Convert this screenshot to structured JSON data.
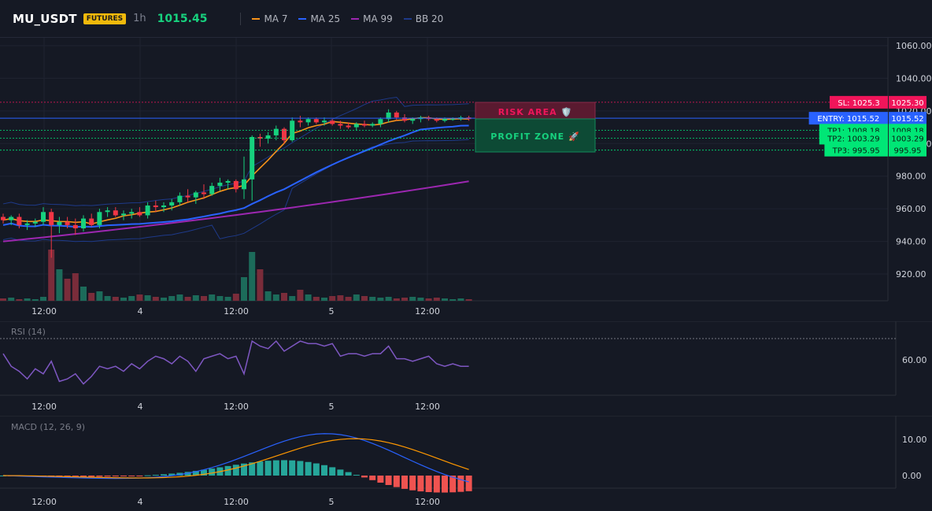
{
  "header": {
    "symbol": "MU_USDT",
    "badge": "FUTURES",
    "timeframe": "1h",
    "last_price": "1015.45",
    "indicators": [
      {
        "label": "MA 7",
        "color": "#f7931a"
      },
      {
        "label": "MA 25",
        "color": "#2962ff"
      },
      {
        "label": "MA 99",
        "color": "#9c27b0"
      },
      {
        "label": "BB 20",
        "color": "#1e3a8a"
      }
    ]
  },
  "colors": {
    "background": "#151924",
    "up": "#17d17e",
    "down": "#f23645",
    "stop_loss": "#f0155a",
    "entry": "#2962ff",
    "take_profit": "#00e676"
  },
  "main_axis": {
    "ticks": [
      "1060.00",
      "1040.00",
      "1020.00",
      "1000.00",
      "980.00",
      "960.00",
      "940.00",
      "920.00"
    ],
    "tick_values": [
      1060,
      1040,
      1020,
      1000,
      980,
      960,
      940,
      920
    ]
  },
  "time_axis": {
    "labels": [
      "12:00",
      "4",
      "12:00",
      "5",
      "12:00"
    ]
  },
  "levels": {
    "stop_loss": {
      "label": "SL: 1025.3",
      "value_text": "1025.30",
      "value": 1025.3
    },
    "entry": {
      "label": "ENTRY: 1015.52",
      "value_text": "1015.52",
      "value": 1015.52
    },
    "tp1": {
      "label": "TP1: 1008.18",
      "value_text": "1008.18",
      "value": 1008.18
    },
    "tp2": {
      "label": "TP2: 1003.29",
      "value_text": "1003.29",
      "value": 1003.29
    },
    "tp3": {
      "label": "TP3: 995.95",
      "value_text": "995.95",
      "value": 995.95
    }
  },
  "zones": {
    "risk_label": "RISK AREA 🛡️",
    "profit_label": "PROFIT ZONE 🚀"
  },
  "rsi": {
    "label": "RSI (14)",
    "tick": "60.00",
    "values": [
      58,
      53,
      51,
      48,
      52,
      50,
      55,
      47,
      48,
      50,
      46,
      49,
      53,
      52,
      53,
      51,
      54,
      52,
      55,
      57,
      56,
      54,
      57,
      55,
      51,
      56,
      57,
      58,
      56,
      57,
      50,
      63,
      61,
      60,
      63,
      59,
      61,
      63,
      62,
      62,
      61,
      62,
      57,
      58,
      58,
      57,
      58,
      58,
      61,
      56,
      56,
      55,
      56,
      57,
      54,
      53,
      54,
      53,
      53
    ]
  },
  "macd": {
    "label": "MACD (12, 26, 9)",
    "ticks": [
      "10.00",
      "0.00"
    ]
  },
  "chart_data": {
    "type": "candlestick",
    "ylim": [
      900,
      1065
    ],
    "candles": [
      [
        955,
        957,
        951,
        953
      ],
      [
        953,
        956,
        950,
        955
      ],
      [
        955,
        957,
        948,
        950
      ],
      [
        950,
        953,
        947,
        951
      ],
      [
        951,
        954,
        949,
        952
      ],
      [
        952,
        961,
        950,
        958
      ],
      [
        958,
        960,
        930,
        950
      ],
      [
        950,
        955,
        945,
        952
      ],
      [
        952,
        955,
        948,
        950
      ],
      [
        950,
        954,
        944,
        948
      ],
      [
        948,
        956,
        946,
        954
      ],
      [
        954,
        957,
        949,
        950
      ],
      [
        950,
        960,
        948,
        958
      ],
      [
        958,
        961,
        955,
        959
      ],
      [
        959,
        961,
        955,
        956
      ],
      [
        956,
        959,
        953,
        957
      ],
      [
        957,
        960,
        954,
        958
      ],
      [
        958,
        961,
        955,
        956
      ],
      [
        956,
        964,
        954,
        962
      ],
      [
        962,
        965,
        958,
        961
      ],
      [
        961,
        964,
        958,
        962
      ],
      [
        962,
        966,
        959,
        964
      ],
      [
        964,
        970,
        962,
        968
      ],
      [
        968,
        972,
        964,
        967
      ],
      [
        967,
        971,
        963,
        970
      ],
      [
        970,
        975,
        966,
        969
      ],
      [
        969,
        976,
        968,
        974
      ],
      [
        974,
        979,
        971,
        976
      ],
      [
        976,
        978,
        972,
        977
      ],
      [
        977,
        978,
        970,
        972
      ],
      [
        972,
        992,
        966,
        978
      ],
      [
        978,
        1005,
        965,
        1004
      ],
      [
        1004,
        1006,
        998,
        1003
      ],
      [
        1003,
        1007,
        1000,
        1005
      ],
      [
        1005,
        1011,
        1002,
        1009
      ],
      [
        1009,
        1010,
        1000,
        1002
      ],
      [
        1002,
        1016,
        1001,
        1014
      ],
      [
        1014,
        1017,
        1010,
        1013
      ],
      [
        1013,
        1016,
        1011,
        1015
      ],
      [
        1015,
        1016,
        1012,
        1013
      ],
      [
        1013,
        1016,
        1011,
        1014
      ],
      [
        1014,
        1015,
        1011,
        1012
      ],
      [
        1012,
        1014,
        1009,
        1011
      ],
      [
        1011,
        1013,
        1009,
        1010
      ],
      [
        1010,
        1013,
        1008,
        1012
      ],
      [
        1012,
        1014,
        1010,
        1011
      ],
      [
        1011,
        1013,
        1010,
        1012
      ],
      [
        1012,
        1016,
        1010,
        1015
      ],
      [
        1015,
        1021,
        1013,
        1019
      ],
      [
        1019,
        1020,
        1014,
        1016
      ],
      [
        1016,
        1018,
        1013,
        1014
      ],
      [
        1014,
        1016,
        1012,
        1015
      ],
      [
        1015,
        1017,
        1013,
        1016
      ],
      [
        1016,
        1017,
        1014,
        1015
      ],
      [
        1015,
        1016,
        1013,
        1014
      ],
      [
        1014,
        1016,
        1013,
        1015
      ],
      [
        1015,
        1016,
        1014,
        1015
      ],
      [
        1015,
        1017,
        1014,
        1016
      ],
      [
        1016,
        1017,
        1014,
        1015
      ]
    ]
  }
}
